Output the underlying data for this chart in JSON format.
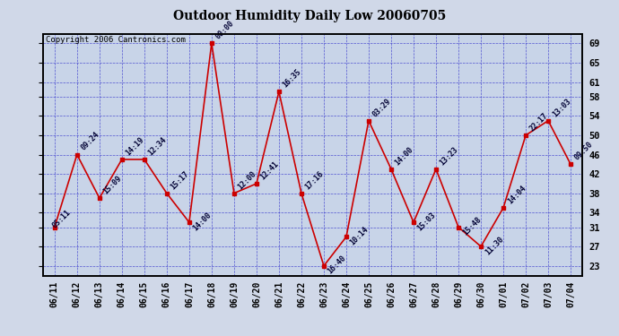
{
  "title": "Outdoor Humidity Daily Low 20060705",
  "copyright": "Copyright 2006 Cantronics.com",
  "outer_bg": "#d0d8e8",
  "plot_bg": "#c8d4e8",
  "line_color": "#cc0000",
  "marker_color": "#cc0000",
  "grid_color": "#3333cc",
  "annotation_color": "#000033",
  "yticks": [
    23,
    27,
    31,
    34,
    38,
    42,
    46,
    50,
    54,
    58,
    61,
    65,
    69
  ],
  "ylim": [
    21.0,
    71.0
  ],
  "dates": [
    "06/11",
    "06/12",
    "06/13",
    "06/14",
    "06/15",
    "06/16",
    "06/17",
    "06/18",
    "06/19",
    "06/20",
    "06/21",
    "06/22",
    "06/23",
    "06/24",
    "06/25",
    "06/26",
    "06/27",
    "06/28",
    "06/29",
    "06/30",
    "07/01",
    "07/02",
    "07/03",
    "07/04"
  ],
  "values": [
    31,
    46,
    37,
    45,
    45,
    38,
    32,
    69,
    38,
    40,
    59,
    38,
    23,
    29,
    53,
    43,
    32,
    43,
    31,
    27,
    35,
    50,
    53,
    44
  ],
  "annotations": [
    {
      "idx": 0,
      "label": "05:11",
      "xoff": -3,
      "yoff": -2,
      "rot": 45
    },
    {
      "idx": 1,
      "label": "09:24",
      "xoff": 2,
      "yoff": 2,
      "rot": 45
    },
    {
      "idx": 2,
      "label": "15:09",
      "xoff": 2,
      "yoff": 2,
      "rot": 45
    },
    {
      "idx": 3,
      "label": "14:19",
      "xoff": 2,
      "yoff": 2,
      "rot": 45
    },
    {
      "idx": 4,
      "label": "12:34",
      "xoff": 2,
      "yoff": 2,
      "rot": 45
    },
    {
      "idx": 5,
      "label": "15:17",
      "xoff": 2,
      "yoff": 2,
      "rot": 45
    },
    {
      "idx": 6,
      "label": "14:00",
      "xoff": 2,
      "yoff": -8,
      "rot": 45
    },
    {
      "idx": 7,
      "label": "00:00",
      "xoff": 2,
      "yoff": 2,
      "rot": 45
    },
    {
      "idx": 8,
      "label": "12:00",
      "xoff": 2,
      "yoff": 2,
      "rot": 45
    },
    {
      "idx": 9,
      "label": "12:41",
      "xoff": 2,
      "yoff": 2,
      "rot": 45
    },
    {
      "idx": 10,
      "label": "16:35",
      "xoff": 2,
      "yoff": 2,
      "rot": 45
    },
    {
      "idx": 11,
      "label": "17:16",
      "xoff": 2,
      "yoff": 2,
      "rot": 45
    },
    {
      "idx": 12,
      "label": "16:40",
      "xoff": 2,
      "yoff": -8,
      "rot": 45
    },
    {
      "idx": 13,
      "label": "10:14",
      "xoff": 2,
      "yoff": -8,
      "rot": 45
    },
    {
      "idx": 14,
      "label": "03:29",
      "xoff": 2,
      "yoff": 2,
      "rot": 45
    },
    {
      "idx": 15,
      "label": "14:00",
      "xoff": 2,
      "yoff": 2,
      "rot": 45
    },
    {
      "idx": 16,
      "label": "15:03",
      "xoff": 2,
      "yoff": -8,
      "rot": 45
    },
    {
      "idx": 17,
      "label": "13:23",
      "xoff": 2,
      "yoff": 2,
      "rot": 45
    },
    {
      "idx": 18,
      "label": "15:48",
      "xoff": 2,
      "yoff": -8,
      "rot": 45
    },
    {
      "idx": 19,
      "label": "11:30",
      "xoff": 2,
      "yoff": -8,
      "rot": 45
    },
    {
      "idx": 20,
      "label": "14:04",
      "xoff": 2,
      "yoff": 2,
      "rot": 45
    },
    {
      "idx": 21,
      "label": "22:17",
      "xoff": 2,
      "yoff": 2,
      "rot": 45
    },
    {
      "idx": 22,
      "label": "13:03",
      "xoff": 2,
      "yoff": 2,
      "rot": 45
    },
    {
      "idx": 23,
      "label": "09:50",
      "xoff": 2,
      "yoff": 2,
      "rot": 45
    }
  ]
}
